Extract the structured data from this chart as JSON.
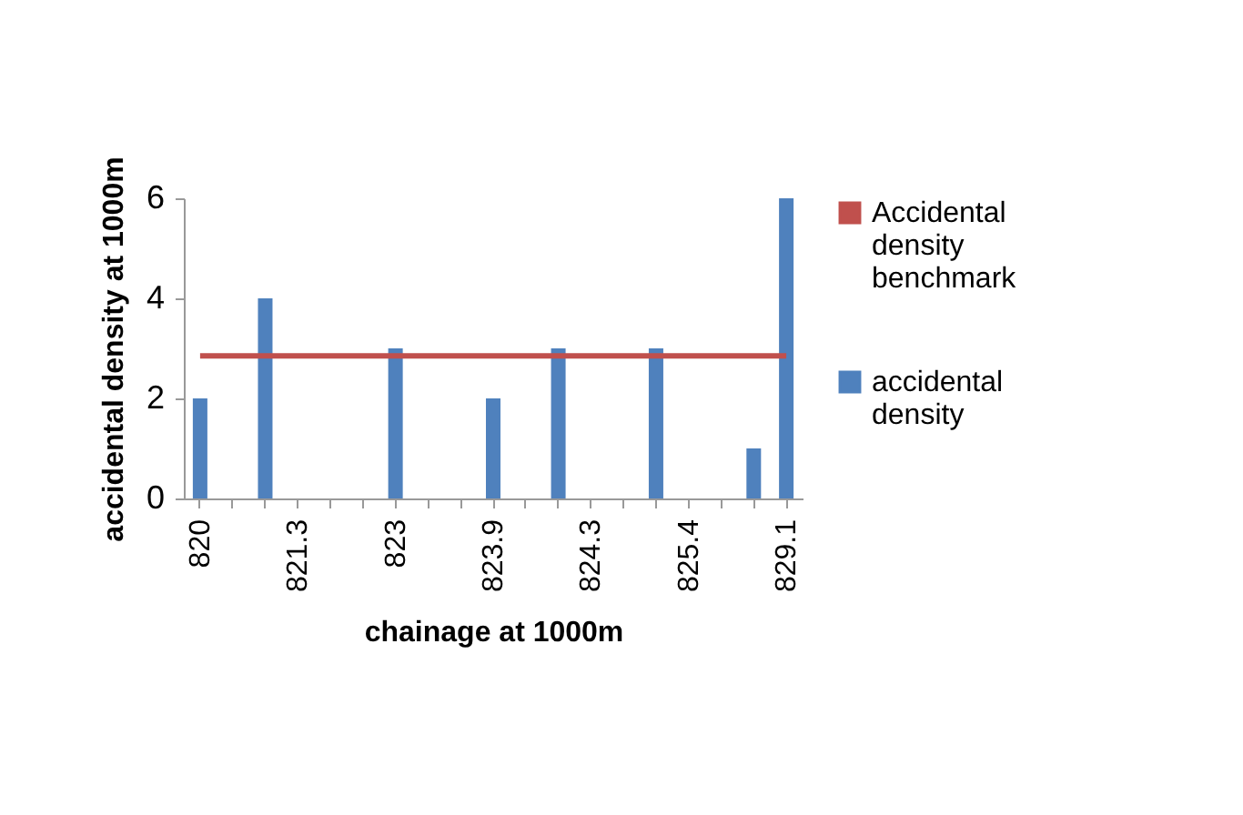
{
  "chart_data": {
    "type": "bar",
    "xlabel": "chainage at 1000m",
    "ylabel": "accidental density at 1000m",
    "categories": [
      "820",
      null,
      null,
      "821.3",
      null,
      null,
      "823",
      null,
      null,
      "823.9",
      null,
      null,
      "824.3",
      null,
      null,
      "825.4",
      null,
      null,
      "829.1"
    ],
    "series": [
      {
        "name": "Accidental density benchmark",
        "type": "line",
        "color": "#c0504d",
        "values": [
          2.85,
          2.85,
          2.85,
          2.85,
          2.85,
          2.85,
          2.85,
          2.85,
          2.85,
          2.85,
          2.85,
          2.85,
          2.85,
          2.85,
          2.85,
          2.85,
          2.85,
          2.85,
          2.85
        ]
      },
      {
        "name": "accidental density",
        "color": "#4f81bd",
        "values": [
          2,
          null,
          4,
          null,
          null,
          null,
          3,
          null,
          null,
          2,
          null,
          3,
          null,
          null,
          3,
          null,
          null,
          1,
          6
        ]
      }
    ],
    "ylim": [
      0,
      6
    ],
    "yticks": [
      0,
      2,
      4,
      6
    ],
    "grid": false,
    "legend": "right"
  }
}
